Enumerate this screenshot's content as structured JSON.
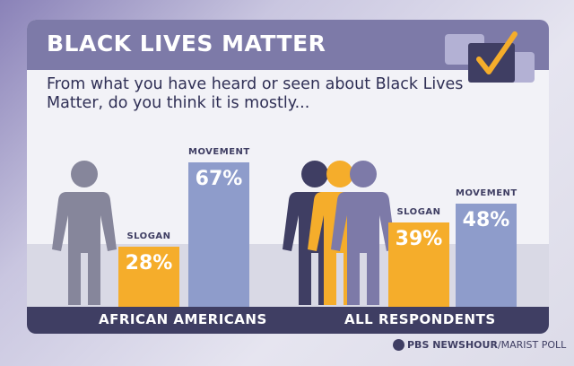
{
  "title": "BLACK LIVES MATTER",
  "question": "From what you have heard or seen about Black Lives Matter, do you think it is mostly...",
  "icons": [
    "checkmark-icon",
    "person-icon",
    "group-of-people-icon",
    "pbs-logo-icon"
  ],
  "colors": {
    "slogan": "#f5ad2b",
    "movement": "#8e9ccb",
    "header": "#7d7aa8",
    "baseline": "#3f3e63",
    "figure_gray": "#86869b",
    "figure_navy": "#3f3e63"
  },
  "chart_data": {
    "type": "bar",
    "title": "BLACK LIVES MATTER",
    "subtitle": "From what you have heard or seen about Black Lives Matter, do you think it is mostly...",
    "xlabel": "",
    "ylabel": "",
    "ylim": [
      0,
      100
    ],
    "grid": false,
    "legend": "none",
    "groups": [
      {
        "name": "AFRICAN AMERICANS",
        "bars": [
          {
            "category": "SLOGAN",
            "value": 28,
            "label": "28%"
          },
          {
            "category": "MOVEMENT",
            "value": 67,
            "label": "67%"
          }
        ]
      },
      {
        "name": "ALL RESPONDENTS",
        "bars": [
          {
            "category": "SLOGAN",
            "value": 39,
            "label": "39%"
          },
          {
            "category": "MOVEMENT",
            "value": 48,
            "label": "48%"
          }
        ]
      }
    ]
  },
  "footer": {
    "brand": "PBS NEWSHOUR",
    "partner": "/MARIST POLL"
  }
}
